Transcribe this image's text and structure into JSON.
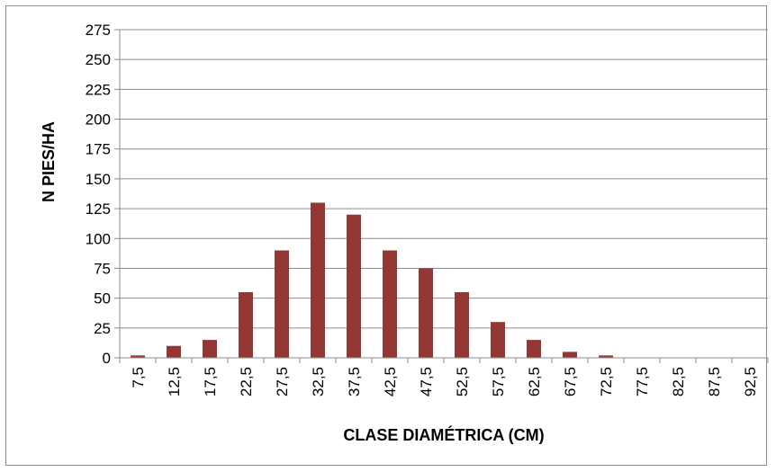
{
  "chart_data": {
    "type": "bar",
    "title": "",
    "xlabel": "CLASE DIAMÉTRICA (CM)",
    "ylabel": "N PIES/HA",
    "categories": [
      "7,5",
      "12,5",
      "17,5",
      "22,5",
      "27,5",
      "32,5",
      "37,5",
      "42,5",
      "47,5",
      "52,5",
      "57,5",
      "62,5",
      "67,5",
      "72,5",
      "77,5",
      "82,5",
      "87,5",
      "92,5"
    ],
    "values": [
      2,
      10,
      15,
      55,
      90,
      130,
      120,
      90,
      75,
      55,
      30,
      15,
      5,
      2,
      0,
      0,
      0,
      0
    ],
    "ylim": [
      0,
      275
    ],
    "yticks": [
      "0",
      "25",
      "50",
      "75",
      "100",
      "125",
      "150",
      "175",
      "200",
      "225",
      "250",
      "275"
    ],
    "grid": true,
    "legend": "none",
    "bar_color": "#953735"
  }
}
